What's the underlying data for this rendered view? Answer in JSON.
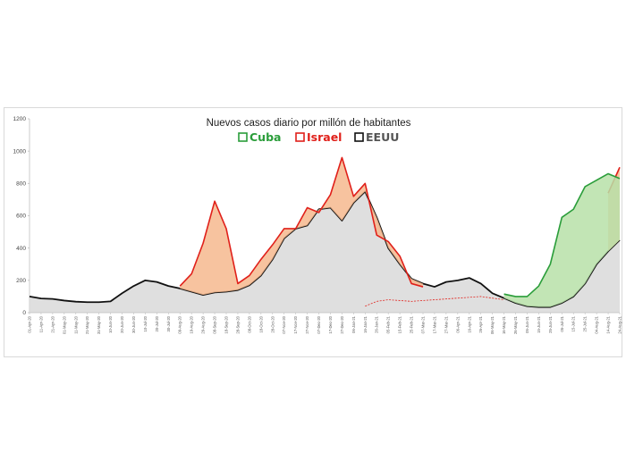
{
  "chart_data": {
    "type": "area",
    "title": "Nuevos casos diario por millón de habitantes",
    "xlabel": "",
    "ylabel": "",
    "ylim": [
      0,
      1200
    ],
    "yticks": [
      0,
      200,
      400,
      600,
      800,
      1000,
      1200
    ],
    "grid": false,
    "legend_position": "top-center",
    "x_tick_labels": [
      "01-Apr-20",
      "11-Apr-20",
      "21-Apr-20",
      "01-May-20",
      "11-May-20",
      "21-May-20",
      "31-May-20",
      "10-Jun-20",
      "20-Jun-20",
      "30-Jun-20",
      "10-Jul-20",
      "20-Jul-20",
      "30-Jul-20",
      "09-Aug-20",
      "19-Aug-20",
      "29-Aug-20",
      "08-Sep-20",
      "18-Sep-20",
      "28-Sep-20",
      "08-Oct-20",
      "18-Oct-20",
      "28-Oct-20",
      "07-Nov-20",
      "17-Nov-20",
      "27-Nov-20",
      "07-Dec-20",
      "17-Dec-20",
      "27-Dec-20",
      "06-Jan-21",
      "16-Jan-21",
      "26-Jan-21",
      "05-Feb-21",
      "15-Feb-21",
      "25-Feb-21",
      "07-Mar-21",
      "17-Mar-21",
      "27-Mar-21",
      "06-Apr-21",
      "16-Apr-21",
      "26-Apr-21",
      "06-May-21",
      "16-May-21",
      "26-May-21",
      "05-Jun-21",
      "15-Jun-21",
      "25-Jun-21",
      "05-Jul-21",
      "15-Jul-21",
      "25-Jul-21",
      "04-Aug-21",
      "14-Aug-21",
      "24-Aug-21"
    ],
    "x": [
      0,
      10,
      20,
      30,
      40,
      50,
      60,
      70,
      80,
      90,
      100,
      110,
      120,
      130,
      140,
      150,
      160,
      170,
      180,
      190,
      200,
      210,
      220,
      230,
      240,
      250,
      260,
      270,
      280,
      290,
      300,
      310,
      320,
      330,
      340,
      350,
      360,
      370,
      380,
      390,
      400,
      410,
      420,
      430,
      440,
      450,
      460,
      470,
      480,
      490,
      500,
      510
    ],
    "series": [
      {
        "name": "Cuba",
        "color": "#2a9d3a",
        "fill": "#b7e0a8",
        "values": [
          0,
          0,
          0,
          0,
          0,
          0,
          0,
          0,
          0,
          0,
          0,
          0,
          0,
          0,
          0,
          0,
          0,
          0,
          0,
          0,
          0,
          0,
          0,
          0,
          0,
          0,
          0,
          0,
          0,
          0,
          0,
          0,
          0,
          0,
          0,
          0,
          0,
          0,
          0,
          0,
          0,
          115,
          100,
          100,
          165,
          300,
          590,
          640,
          780,
          820,
          860,
          830
        ]
      },
      {
        "name": "Israel",
        "color": "#e0201a",
        "fill": "#f6b98e",
        "values": [
          0,
          0,
          0,
          0,
          0,
          0,
          0,
          0,
          0,
          0,
          0,
          0,
          0,
          165,
          240,
          430,
          690,
          520,
          180,
          230,
          330,
          420,
          520,
          520,
          650,
          620,
          730,
          960,
          720,
          800,
          480,
          440,
          350,
          180,
          160,
          0,
          0,
          0,
          0,
          0,
          0,
          0,
          0,
          0,
          0,
          0,
          0,
          0,
          0,
          0,
          740,
          900
        ]
      },
      {
        "name": "EEUU",
        "color": "#111111",
        "fill": "#dcdcdc",
        "values": [
          100,
          88,
          85,
          75,
          68,
          65,
          65,
          70,
          120,
          165,
          200,
          190,
          165,
          150,
          130,
          110,
          125,
          130,
          140,
          170,
          230,
          330,
          460,
          520,
          540,
          640,
          650,
          570,
          680,
          750,
          590,
          400,
          300,
          210,
          180,
          160,
          190,
          200,
          215,
          180,
          120,
          90,
          60,
          40,
          35,
          35,
          60,
          100,
          180,
          300,
          380,
          450
        ]
      },
      {
        "name": "",
        "color": "#e0201a",
        "dashed": true,
        "values": [
          0,
          0,
          0,
          0,
          0,
          0,
          0,
          0,
          0,
          0,
          0,
          0,
          0,
          0,
          0,
          0,
          0,
          0,
          0,
          0,
          0,
          0,
          0,
          0,
          0,
          0,
          0,
          0,
          0,
          40,
          70,
          80,
          75,
          70,
          75,
          80,
          85,
          90,
          95,
          100,
          90,
          80,
          0,
          0,
          0,
          0,
          0,
          0,
          0,
          0,
          0,
          0
        ]
      }
    ]
  }
}
